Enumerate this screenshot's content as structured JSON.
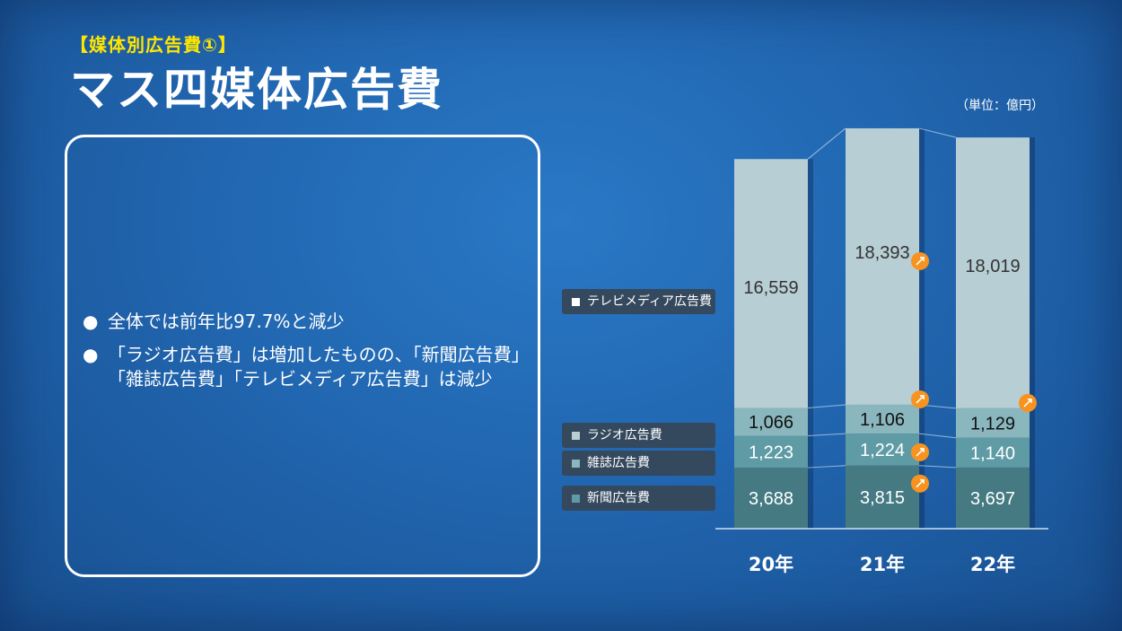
{
  "header": {
    "subtitle": "【媒体別広告費①】",
    "title": "マス四媒体広告費",
    "unit": "（単位：億円）"
  },
  "summary": {
    "bullets": [
      "全体では前年比97.7%と減少",
      "「ラジオ広告費」は増加したものの、「新聞広告費」「雑誌広告費」「テレビメディア広告費」は減少"
    ],
    "bullet_line2": "「雑誌広告費」「テレビメディア広告費」は減少",
    "bullet_line1": "「ラジオ広告費」は増加したものの、「新聞広告費」",
    "bullet_glyph": "●"
  },
  "legend": {
    "tv": "テレビメディア広告費",
    "radio": "ラジオ広告費",
    "magazine": "雑誌広告費",
    "newspaper": "新聞広告費"
  },
  "colors": {
    "tv": "#b7ced4",
    "radio": "#8ab6be",
    "magazine": "#5f9ba5",
    "newspaper": "#457a83",
    "increase_badge": "#f7931e"
  },
  "chart_data": {
    "type": "bar",
    "stacked": true,
    "categories": [
      "20年",
      "21年",
      "22年"
    ],
    "series": [
      {
        "name": "新聞広告費",
        "values": [
          3688,
          3815,
          3697
        ]
      },
      {
        "name": "雑誌広告費",
        "values": [
          1223,
          1224,
          1140
        ]
      },
      {
        "name": "ラジオ広告費",
        "values": [
          1066,
          1106,
          1129
        ]
      },
      {
        "name": "テレビメディア広告費",
        "values": [
          16559,
          18393,
          18019
        ]
      }
    ],
    "increase_markers": [
      {
        "category": "21年",
        "series": "テレビメディア広告費",
        "icon": "up-arrow-icon"
      },
      {
        "category": "21年",
        "series": "ラジオ広告費",
        "icon": "up-arrow-icon"
      },
      {
        "category": "21年",
        "series": "雑誌広告費",
        "icon": "up-arrow-icon"
      },
      {
        "category": "21年",
        "series": "新聞広告費",
        "icon": "up-arrow-icon"
      },
      {
        "category": "22年",
        "series": "ラジオ広告費",
        "icon": "up-arrow-icon"
      }
    ],
    "unit": "（単位：億円）",
    "legend_position": "left"
  }
}
